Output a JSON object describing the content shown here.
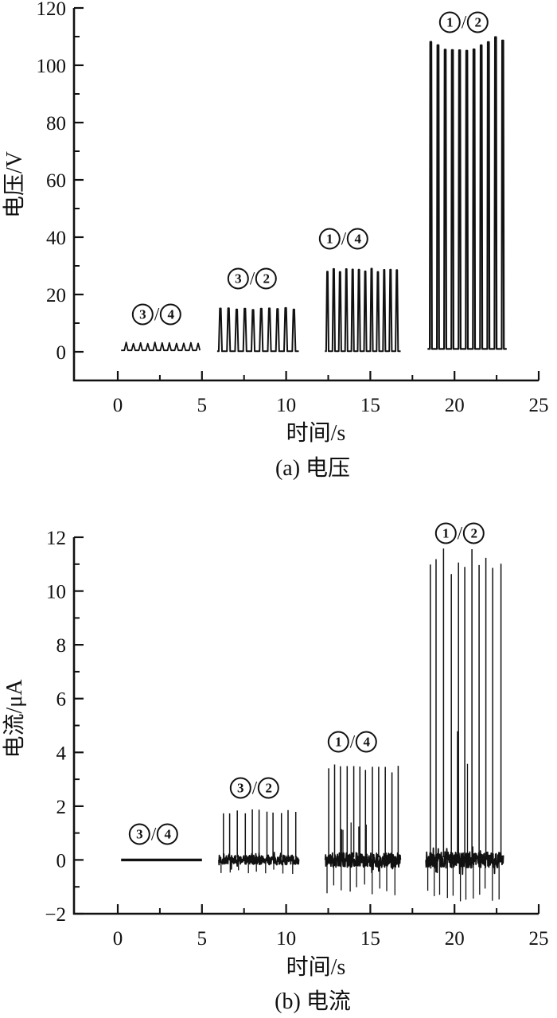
{
  "colors": {
    "line": "#111111",
    "text": "#111111"
  },
  "chart_data": [
    {
      "type": "line",
      "name": "voltage",
      "caption": "(a) 电压",
      "xlabel": "时间/s",
      "ylabel": "电压/V",
      "xlim": [
        -2.6,
        25
      ],
      "ylim": [
        -10,
        120
      ],
      "x_tick_values": [
        0,
        5,
        10,
        15,
        20,
        25
      ],
      "x_tick_labels": [
        "0",
        "5",
        "10",
        "15",
        "20",
        "25"
      ],
      "y_tick_values": [
        0,
        20,
        40,
        60,
        80,
        100,
        120
      ],
      "y_tick_labels": [
        "0",
        "20",
        "40",
        "60",
        "80",
        "100",
        "120"
      ],
      "grid": false,
      "legend": "none",
      "annotations": [
        {
          "pair": [
            "3",
            "4"
          ],
          "x": 2.32,
          "y": 13.1
        },
        {
          "pair": [
            "3",
            "2"
          ],
          "x": 7.99,
          "y": 25.6
        },
        {
          "pair": [
            "1",
            "4"
          ],
          "x": 13.42,
          "y": 39.4
        },
        {
          "pair": [
            "1",
            "2"
          ],
          "x": 20.56,
          "y": 115
        }
      ],
      "bursts": [
        {
          "kind": "ripple",
          "x0": 0.2,
          "x1": 4.9,
          "cycles": 11,
          "base": 0.5,
          "peak": 3.2,
          "seed": 3
        },
        {
          "kind": "square",
          "x0": 5.9,
          "x1": 10.75,
          "cycles": 10,
          "base": 0.2,
          "peak": 15.3,
          "seed": 5
        },
        {
          "kind": "square",
          "x0": 12.3,
          "x1": 16.8,
          "cycles": 12,
          "base": 0.2,
          "peak": 29,
          "seed": 9
        },
        {
          "kind": "pulse",
          "x0": 18.4,
          "x1": 23.1,
          "cycles": 11,
          "base": 1.0,
          "peak": 110,
          "seed": 13
        }
      ]
    },
    {
      "type": "line",
      "name": "current",
      "caption": "(b) 电流",
      "xlabel": "时间/s",
      "ylabel": "电流/μA",
      "xlim": [
        -2.6,
        25
      ],
      "ylim": [
        -2,
        12
      ],
      "x_tick_values": [
        0,
        5,
        10,
        15,
        20,
        25
      ],
      "x_tick_labels": [
        "0",
        "5",
        "10",
        "15",
        "20",
        "25"
      ],
      "y_tick_values": [
        -2,
        0,
        2,
        4,
        6,
        8,
        10,
        12
      ],
      "y_tick_labels": [
        "−2",
        "0",
        "2",
        "4",
        "6",
        "8",
        "10",
        "12"
      ],
      "grid": false,
      "legend": "none",
      "annotations": [
        {
          "pair": [
            "3",
            "4"
          ],
          "x": 2.13,
          "y": 0.95
        },
        {
          "pair": [
            "3",
            "2"
          ],
          "x": 8.13,
          "y": 2.67
        },
        {
          "pair": [
            "1",
            "4"
          ],
          "x": 13.94,
          "y": 4.39
        },
        {
          "pair": [
            "1",
            "2"
          ],
          "x": 20.32,
          "y": 12.15
        }
      ],
      "bursts": [
        {
          "kind": "flat",
          "x0": 0.2,
          "x1": 5.0,
          "level": 0
        },
        {
          "kind": "spikes",
          "x0": 6.0,
          "x1": 10.75,
          "up_count": 11,
          "up_peak": 1.85,
          "down_count": 9,
          "down_peak": -0.5,
          "noise": 0.18,
          "seed": 7
        },
        {
          "kind": "spikes",
          "x0": 12.3,
          "x1": 16.8,
          "up_count": 12,
          "up_peak": 3.5,
          "mid_count": 6,
          "mid_peak": 1.35,
          "down_count": 10,
          "down_peak": -1.25,
          "noise": 0.27,
          "seed": 11
        },
        {
          "kind": "spikes",
          "x0": 18.3,
          "x1": 22.9,
          "up_count": 11,
          "up_peak": 11.4,
          "mid_count": 2,
          "mid_peak": 4.4,
          "down_count": 12,
          "down_peak": -1.5,
          "noise": 0.3,
          "seed": 19
        }
      ]
    }
  ]
}
